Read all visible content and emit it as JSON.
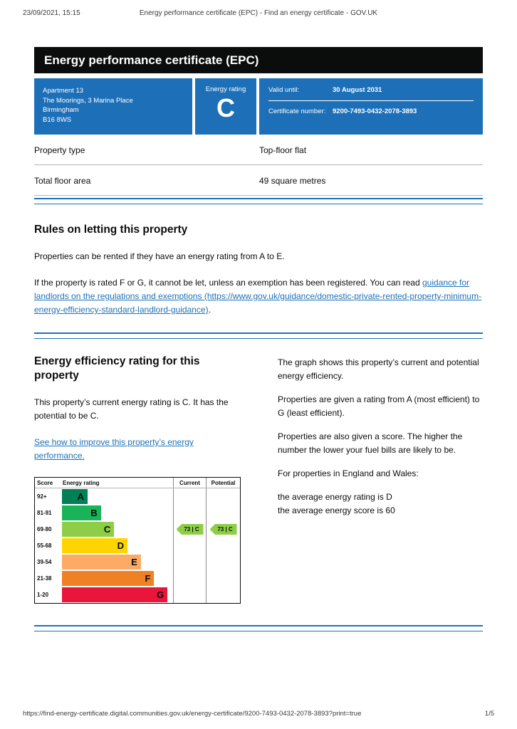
{
  "print_header": {
    "datetime": "23/09/2021, 15:15",
    "title": "Energy performance certificate (EPC) - Find an energy certificate - GOV.UK"
  },
  "banner": {
    "title": "Energy performance certificate (EPC)"
  },
  "summary": {
    "address_lines": [
      "Apartment 13",
      "The Moorings, 3 Marina Place",
      "Birmingham",
      "B16 8WS"
    ],
    "rating_label": "Energy rating",
    "rating": "C",
    "valid_until_label": "Valid until:",
    "valid_until_value": "30 August 2031",
    "certificate_number_label": "Certificate number:",
    "certificate_number_value": "9200-7493-0432-2078-3893"
  },
  "property_table": {
    "rows": [
      {
        "label": "Property type",
        "value": "Top-floor flat"
      },
      {
        "label": "Total floor area",
        "value": "49 square metres"
      }
    ]
  },
  "rules_section": {
    "heading": "Rules on letting this property",
    "para1": "Properties can be rented if they have an energy rating from A to E.",
    "para2_before": "If the property is rated F or G, it cannot be let, unless an exemption has been registered. You can read ",
    "para2_link": "guidance for landlords on the regulations and exemptions (https://www.gov.uk/guidance/domestic-private-rented-property-minimum-energy-efficiency-standard-landlord-guidance)",
    "para2_after": "."
  },
  "efficiency_section": {
    "heading": "Energy efficiency rating for this property",
    "para1": "This property’s current energy rating is C. It has the potential to be C.",
    "improve_link": "See how to improve this property’s energy performance.",
    "right_paras": [
      "The graph shows this property’s current and potential energy efficiency.",
      "Properties are given a rating from A (most efficient) to G (least efficient).",
      "Properties are also given a score. The higher the number the lower your fuel bills are likely to be.",
      "For properties in England and Wales:"
    ],
    "averages": [
      "the average energy rating is D",
      "the average energy score is 60"
    ]
  },
  "chart_data": {
    "type": "bar",
    "title": "Energy efficiency rating chart",
    "header": {
      "score": "Score",
      "rating": "Energy rating",
      "current": "Current",
      "potential": "Potential"
    },
    "bands": [
      {
        "score": "92+",
        "letter": "A",
        "color": "#008054",
        "width_pct": 23
      },
      {
        "score": "81-91",
        "letter": "B",
        "color": "#19b459",
        "width_pct": 35
      },
      {
        "score": "69-80",
        "letter": "C",
        "color": "#8dce46",
        "width_pct": 47
      },
      {
        "score": "55-68",
        "letter": "D",
        "color": "#ffd500",
        "width_pct": 59
      },
      {
        "score": "39-54",
        "letter": "E",
        "color": "#fcaa65",
        "width_pct": 71
      },
      {
        "score": "21-38",
        "letter": "F",
        "color": "#ef8023",
        "width_pct": 83
      },
      {
        "score": "1-20",
        "letter": "G",
        "color": "#e9153b",
        "width_pct": 95
      }
    ],
    "current": {
      "label": "73 | C",
      "score": 73,
      "letter": "C",
      "band_row_index": 2,
      "color": "#8dce46"
    },
    "potential": {
      "label": "73 | C",
      "score": 73,
      "letter": "C",
      "band_row_index": 2,
      "color": "#8dce46"
    }
  },
  "colors": {
    "accent_blue": "#1d70b8",
    "banner_black": "#0b0c0c",
    "link_blue": "#1d70b8"
  },
  "footer": {
    "url": "https://find-energy-certificate.digital.communities.gov.uk/energy-certificate/9200-7493-0432-2078-3893?print=true",
    "page": "1/5"
  }
}
